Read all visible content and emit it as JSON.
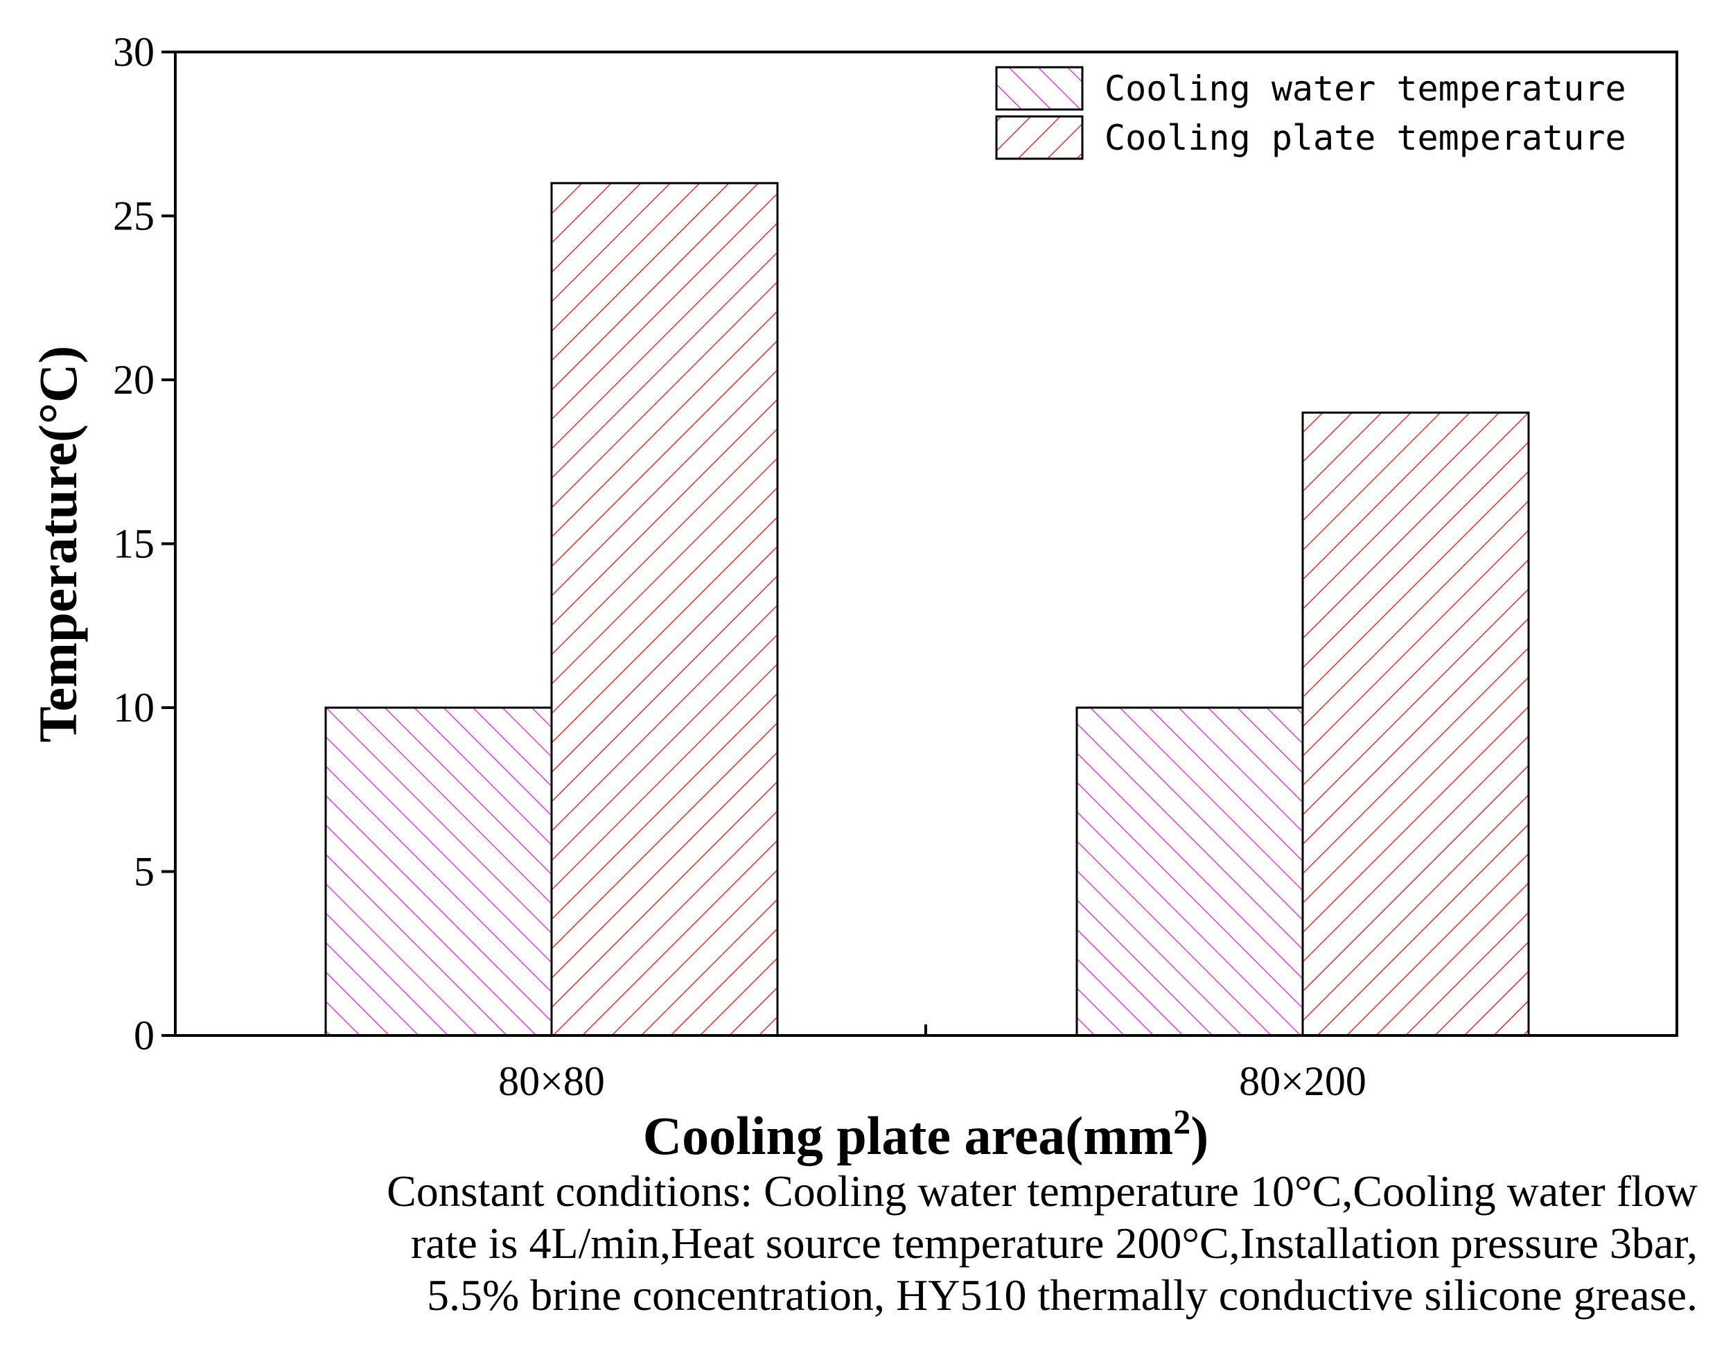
{
  "chart_data": {
    "type": "bar",
    "categories": [
      "80×80",
      "80×200"
    ],
    "series": [
      {
        "name": "Cooling water temperature",
        "values": [
          10,
          10
        ],
        "color": "#e040e0"
      },
      {
        "name": "Cooling plate temperature",
        "values": [
          26,
          19
        ],
        "color": "#e8302a"
      }
    ],
    "ylabel": "Temperature(°C)",
    "xlabel": {
      "text": "Cooling plate area(mm",
      "superscript": "2",
      "suffix": ")"
    },
    "ylim": [
      0,
      30
    ],
    "yticks": [
      0,
      5,
      10,
      15,
      20,
      25,
      30
    ],
    "legend_position": "top-right",
    "grid": false
  },
  "caption": {
    "lines": [
      "Constant conditions: Cooling water temperature 10°C,Cooling water flow",
      "rate is 4L/min,Heat source temperature 200°C,Installation pressure 3bar,",
      "5.5% brine concentration, HY510 thermally conductive silicone grease."
    ]
  }
}
